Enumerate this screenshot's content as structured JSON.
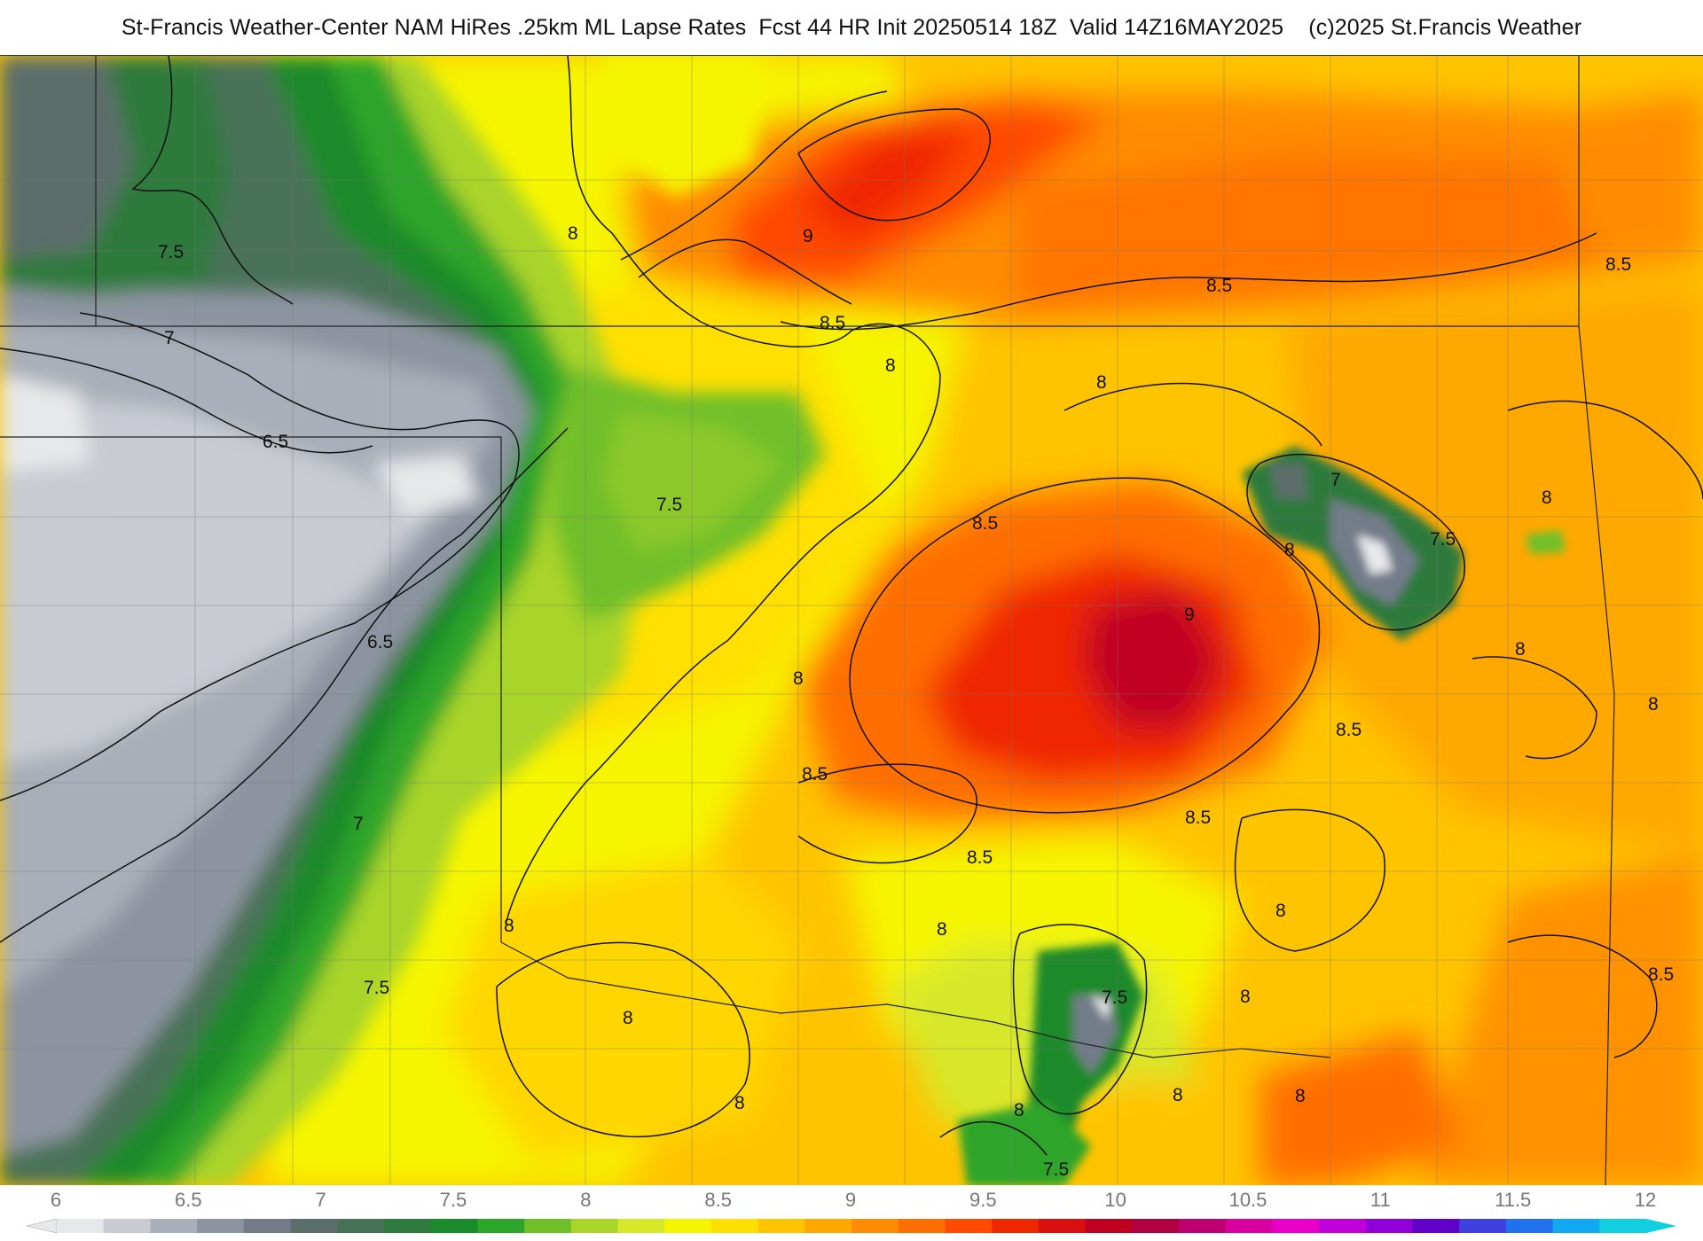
{
  "title": "St-Francis Weather-Center NAM HiRes .25km ML Lapse Rates  Fcst 44 HR Init 20250514 18Z  Valid 14Z16MAY2025    (c)2025 St.Francis Weather",
  "legend": {
    "ticks": [
      "6",
      "6.5",
      "7",
      "7.5",
      "8",
      "8.5",
      "9",
      "9.5",
      "10",
      "10.5",
      "11",
      "11.5",
      "12"
    ],
    "colors": [
      "#e6e8ea",
      "#c8ccd2",
      "#a9afb8",
      "#8d94a0",
      "#737b89",
      "#5c6e6a",
      "#487258",
      "#2f7a3e",
      "#1a8a2a",
      "#2da52a",
      "#6fbf2a",
      "#a9d42a",
      "#d7e82a",
      "#f5f500",
      "#ffe000",
      "#ffc400",
      "#ffa800",
      "#ff8c00",
      "#ff6e00",
      "#ff4a00",
      "#f02800",
      "#d81010",
      "#c00020",
      "#b00040",
      "#c00070",
      "#d800a0",
      "#e800c8",
      "#c000d8",
      "#9000d8",
      "#6000c8",
      "#4040e0",
      "#2070f0",
      "#10a8f0",
      "#10d0e0"
    ]
  },
  "contour_labels": [
    {
      "text": "7.5",
      "id": "c1"
    },
    {
      "text": "7",
      "id": "c2"
    },
    {
      "text": "8",
      "id": "c3"
    },
    {
      "text": "9",
      "id": "c4"
    },
    {
      "text": "8.5",
      "id": "c5"
    },
    {
      "text": "8",
      "id": "c6"
    },
    {
      "text": "8.5",
      "id": "c7"
    },
    {
      "text": "8.5",
      "id": "c8"
    },
    {
      "text": "6.5",
      "id": "c9"
    },
    {
      "text": "8",
      "id": "c10"
    },
    {
      "text": "7.5",
      "id": "c11"
    },
    {
      "text": "8.5",
      "id": "c12"
    },
    {
      "text": "9",
      "id": "c13"
    },
    {
      "text": "8",
      "id": "c14"
    },
    {
      "text": "7",
      "id": "c15"
    },
    {
      "text": "7.5",
      "id": "c16"
    },
    {
      "text": "8",
      "id": "c17"
    },
    {
      "text": "8",
      "id": "c18"
    },
    {
      "text": "6.5",
      "id": "c19"
    },
    {
      "text": "8",
      "id": "c20"
    },
    {
      "text": "8.5",
      "id": "c21"
    },
    {
      "text": "8",
      "id": "c22"
    },
    {
      "text": "8.5",
      "id": "c23"
    },
    {
      "text": "7",
      "id": "c24"
    },
    {
      "text": "8.5",
      "id": "c25"
    },
    {
      "text": "8.5",
      "id": "c26"
    },
    {
      "text": "8",
      "id": "c27"
    },
    {
      "text": "8",
      "id": "c28"
    },
    {
      "text": "8",
      "id": "c29"
    },
    {
      "text": "7.5",
      "id": "c30"
    },
    {
      "text": "8",
      "id": "c31"
    },
    {
      "text": "8.5",
      "id": "c32"
    },
    {
      "text": "8",
      "id": "c33"
    },
    {
      "text": "7.5",
      "id": "c34"
    },
    {
      "text": "8",
      "id": "c35"
    },
    {
      "text": "8",
      "id": "c36"
    },
    {
      "text": "8",
      "id": "c37"
    },
    {
      "text": "8",
      "id": "c38"
    },
    {
      "text": "7.5",
      "id": "c39"
    }
  ]
}
